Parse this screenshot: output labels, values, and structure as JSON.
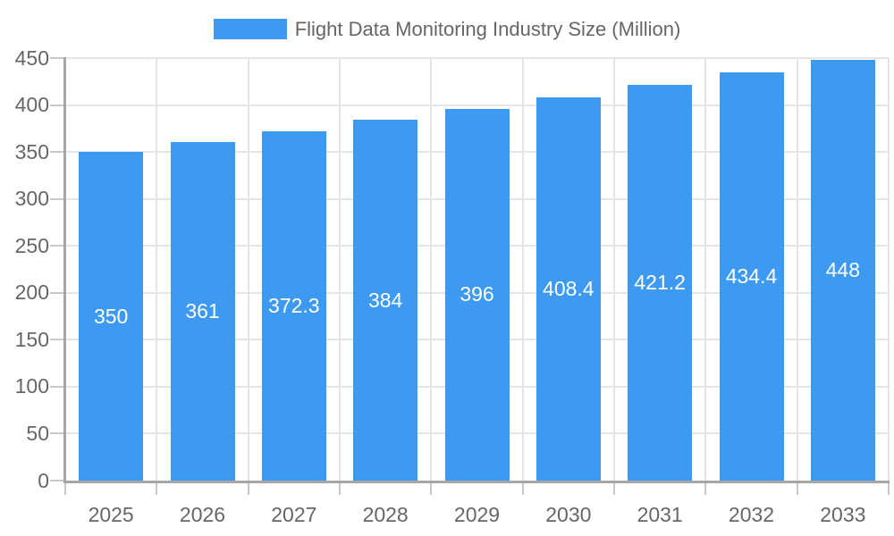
{
  "chart_data": {
    "type": "bar",
    "title": "Flight Data Monitoring Industry Size (Million)",
    "xlabel": "",
    "ylabel": "",
    "categories": [
      "2025",
      "2026",
      "2027",
      "2028",
      "2029",
      "2030",
      "2031",
      "2032",
      "2033"
    ],
    "values": [
      350,
      361,
      372.3,
      384,
      396,
      408.4,
      421.2,
      434.4,
      448
    ],
    "bar_value_labels": [
      "350",
      "361",
      "372.3",
      "384",
      "396",
      "408.4",
      "421.2",
      "434.4",
      "448"
    ],
    "ylim": [
      0,
      450
    ],
    "yticks": [
      0,
      50,
      100,
      150,
      200,
      250,
      300,
      350,
      400,
      450
    ],
    "grid": true,
    "legend_position": "top",
    "colors": {
      "bar": "#3D9AF0",
      "grid_line": "#E5E5E5",
      "axis_line": "#A6A6A6",
      "tick_mark": "#C8C8C8",
      "tick_label": "#666666",
      "legend_text": "#666666",
      "bar_label": "#FFFFFF",
      "background": "#FFFFFF"
    }
  }
}
